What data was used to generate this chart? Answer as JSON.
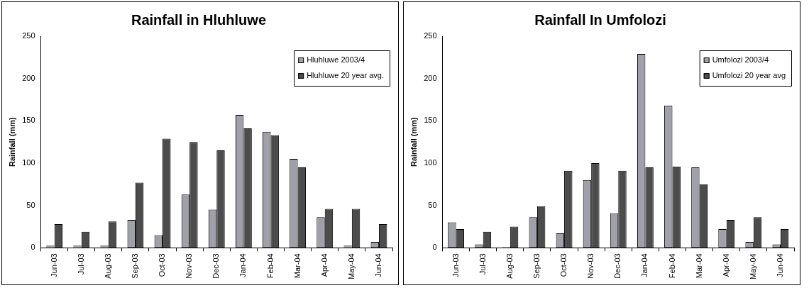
{
  "chart_data": [
    {
      "type": "bar",
      "title": "Rainfall in Hluhluwe",
      "ylabel": "Rainfall (mm)",
      "categories": [
        "Jun-03",
        "Jul-03",
        "Aug-03",
        "Sep-03",
        "Oct-03",
        "Nov-03",
        "Dec-03",
        "Jan-04",
        "Feb-04",
        "Mar-04",
        "Apr-04",
        "May-04",
        "Jun-04"
      ],
      "series": [
        {
          "name": "Hluhluwe 2003/4",
          "color": "#a0a0a8",
          "values": [
            3,
            3,
            3,
            33,
            15,
            63,
            45,
            157,
            137,
            105,
            36,
            3,
            7
          ]
        },
        {
          "name": "Hluhluwe 20 year avg.",
          "color": "#4c4c4c",
          "values": [
            28,
            19,
            31,
            77,
            129,
            125,
            115,
            141,
            133,
            95,
            46,
            46,
            28
          ]
        }
      ],
      "ylim": [
        0,
        250
      ],
      "yticks": [
        0,
        50,
        100,
        150,
        200,
        250
      ],
      "grid": false,
      "legend": "top right"
    },
    {
      "type": "bar",
      "title": "Rainfall In Umfolozi",
      "ylabel": "Rainfall (mm)",
      "categories": [
        "Jun-03",
        "Jul-03",
        "Aug-03",
        "Sep-03",
        "Oct-03",
        "Nov-03",
        "Dec-03",
        "Jan-04",
        "Feb-04",
        "Mar-04",
        "Apr-04",
        "May-04",
        "Jun-04"
      ],
      "series": [
        {
          "name": "Umfolozi 2003/4",
          "color": "#a0a0a8",
          "values": [
            30,
            4,
            1,
            36,
            17,
            80,
            41,
            229,
            168,
            95,
            22,
            7,
            4
          ]
        },
        {
          "name": "Umfolozi 20 year avg",
          "color": "#4c4c4c",
          "values": [
            22,
            19,
            25,
            49,
            91,
            100,
            91,
            95,
            96,
            75,
            33,
            36,
            22
          ]
        }
      ],
      "ylim": [
        0,
        250
      ],
      "yticks": [
        0,
        50,
        100,
        150,
        200,
        250
      ],
      "grid": false,
      "legend": "top right"
    }
  ]
}
